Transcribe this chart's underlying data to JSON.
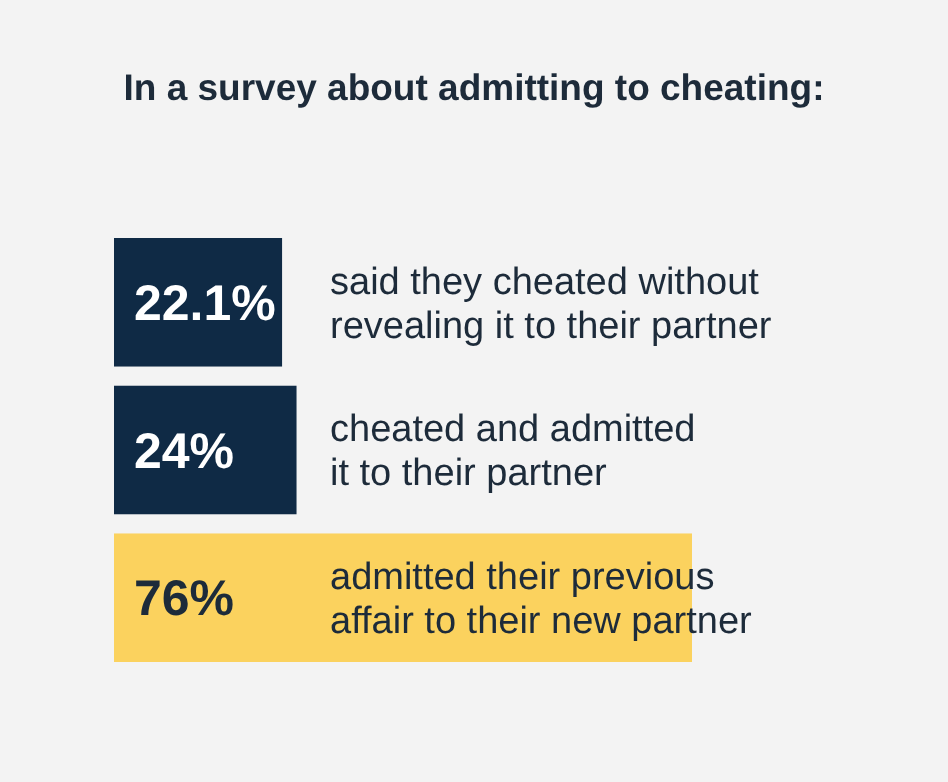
{
  "chart_data": {
    "type": "bar",
    "orientation": "horizontal",
    "title": "In a survey about admitting to cheating:",
    "categories": [
      "said they cheated without\nrevealing it to their partner",
      "cheated and admitted\nit to their partner",
      "admitted their previous\naffair to their new partner"
    ],
    "values": [
      22.1,
      24,
      76
    ],
    "value_labels": [
      "22.1%",
      "24%",
      "76%"
    ],
    "colors": [
      "#0f2a45",
      "#0f2a45",
      "#fbd25e"
    ]
  }
}
